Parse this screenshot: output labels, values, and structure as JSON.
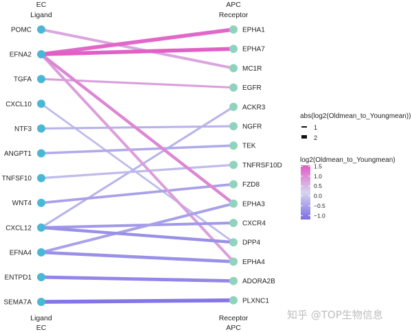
{
  "chart_data": {
    "type": "bipartite-network",
    "left_group": {
      "top_title": [
        "EC",
        "Ligand"
      ],
      "bottom_title": [
        "Ligand",
        "EC"
      ]
    },
    "right_group": {
      "top_title": [
        "APC",
        "Receptor"
      ],
      "bottom_title": [
        "Receptor",
        "APC"
      ]
    },
    "ligands": [
      "POMC",
      "EFNA2",
      "TGFA",
      "CXCL10",
      "NTF3",
      "ANGPT1",
      "TNFSF10",
      "WNT4",
      "CXCL12",
      "EFNA4",
      "ENTPD1",
      "SEMA7A"
    ],
    "receptors": [
      "EPHA1",
      "EPHA7",
      "MC1R",
      "EGFR",
      "ACKR3",
      "NGFR",
      "TEK",
      "TNFRSF10D",
      "FZD8",
      "EPHA3",
      "CXCR4",
      "DPP4",
      "EPHA4",
      "ADORA2B",
      "PLXNC1"
    ],
    "node_colors": {
      "ligand": "#4bb7d6",
      "receptor": "#90d3bd"
    },
    "links": [
      {
        "ligand": "POMC",
        "receptor": "MC1R",
        "log2fc": 0.6,
        "abs": 1.3
      },
      {
        "ligand": "EFNA2",
        "receptor": "EPHA1",
        "log2fc": 1.4,
        "abs": 2.0
      },
      {
        "ligand": "EFNA2",
        "receptor": "EPHA7",
        "log2fc": 1.5,
        "abs": 2.0
      },
      {
        "ligand": "EFNA2",
        "receptor": "EPHA3",
        "log2fc": 1.0,
        "abs": 1.5
      },
      {
        "ligand": "EFNA2",
        "receptor": "EPHA4",
        "log2fc": 0.7,
        "abs": 1.3
      },
      {
        "ligand": "TGFA",
        "receptor": "EGFR",
        "log2fc": 0.7,
        "abs": 0.9
      },
      {
        "ligand": "CXCL10",
        "receptor": "DPP4",
        "log2fc": -0.3,
        "abs": 0.8
      },
      {
        "ligand": "NTF3",
        "receptor": "NGFR",
        "log2fc": -0.4,
        "abs": 0.9
      },
      {
        "ligand": "ANGPT1",
        "receptor": "TEK",
        "log2fc": -0.5,
        "abs": 1.1
      },
      {
        "ligand": "TNFSF10",
        "receptor": "TNFRSF10D",
        "log2fc": -0.3,
        "abs": 1.0
      },
      {
        "ligand": "WNT4",
        "receptor": "FZD8",
        "log2fc": -0.6,
        "abs": 1.2
      },
      {
        "ligand": "CXCL12",
        "receptor": "ACKR3",
        "log2fc": -0.4,
        "abs": 0.9
      },
      {
        "ligand": "CXCL12",
        "receptor": "CXCR4",
        "log2fc": -0.7,
        "abs": 1.3
      },
      {
        "ligand": "CXCL12",
        "receptor": "DPP4",
        "log2fc": -0.8,
        "abs": 1.5
      },
      {
        "ligand": "EFNA4",
        "receptor": "EPHA3",
        "log2fc": -0.6,
        "abs": 1.3
      },
      {
        "ligand": "EFNA4",
        "receptor": "EPHA4",
        "log2fc": -0.8,
        "abs": 1.6
      },
      {
        "ligand": "ENTPD1",
        "receptor": "ADORA2B",
        "log2fc": -0.9,
        "abs": 1.7
      },
      {
        "ligand": "SEMA7A",
        "receptor": "PLXNC1",
        "log2fc": -1.1,
        "abs": 2.0
      }
    ],
    "size_legend": {
      "title": "abs(log2(Oldmean_to_Youngmean))",
      "entries": [
        1,
        2
      ]
    },
    "color_legend": {
      "title": "log2(Oldmean_to_Youngmean)",
      "ticks": [
        "1.5",
        "1.0",
        "0.5",
        "0.0",
        "−0.5",
        "−1.0"
      ],
      "tick_values": [
        1.5,
        1.0,
        0.5,
        0.0,
        -0.5,
        -1.0
      ],
      "range": [
        -1.2,
        1.55
      ],
      "colors": {
        "low": "#7b6de4",
        "mid": "#d5d5ee",
        "high": "#e25bc5"
      }
    }
  },
  "watermark": "知乎 @TOP生物信息"
}
